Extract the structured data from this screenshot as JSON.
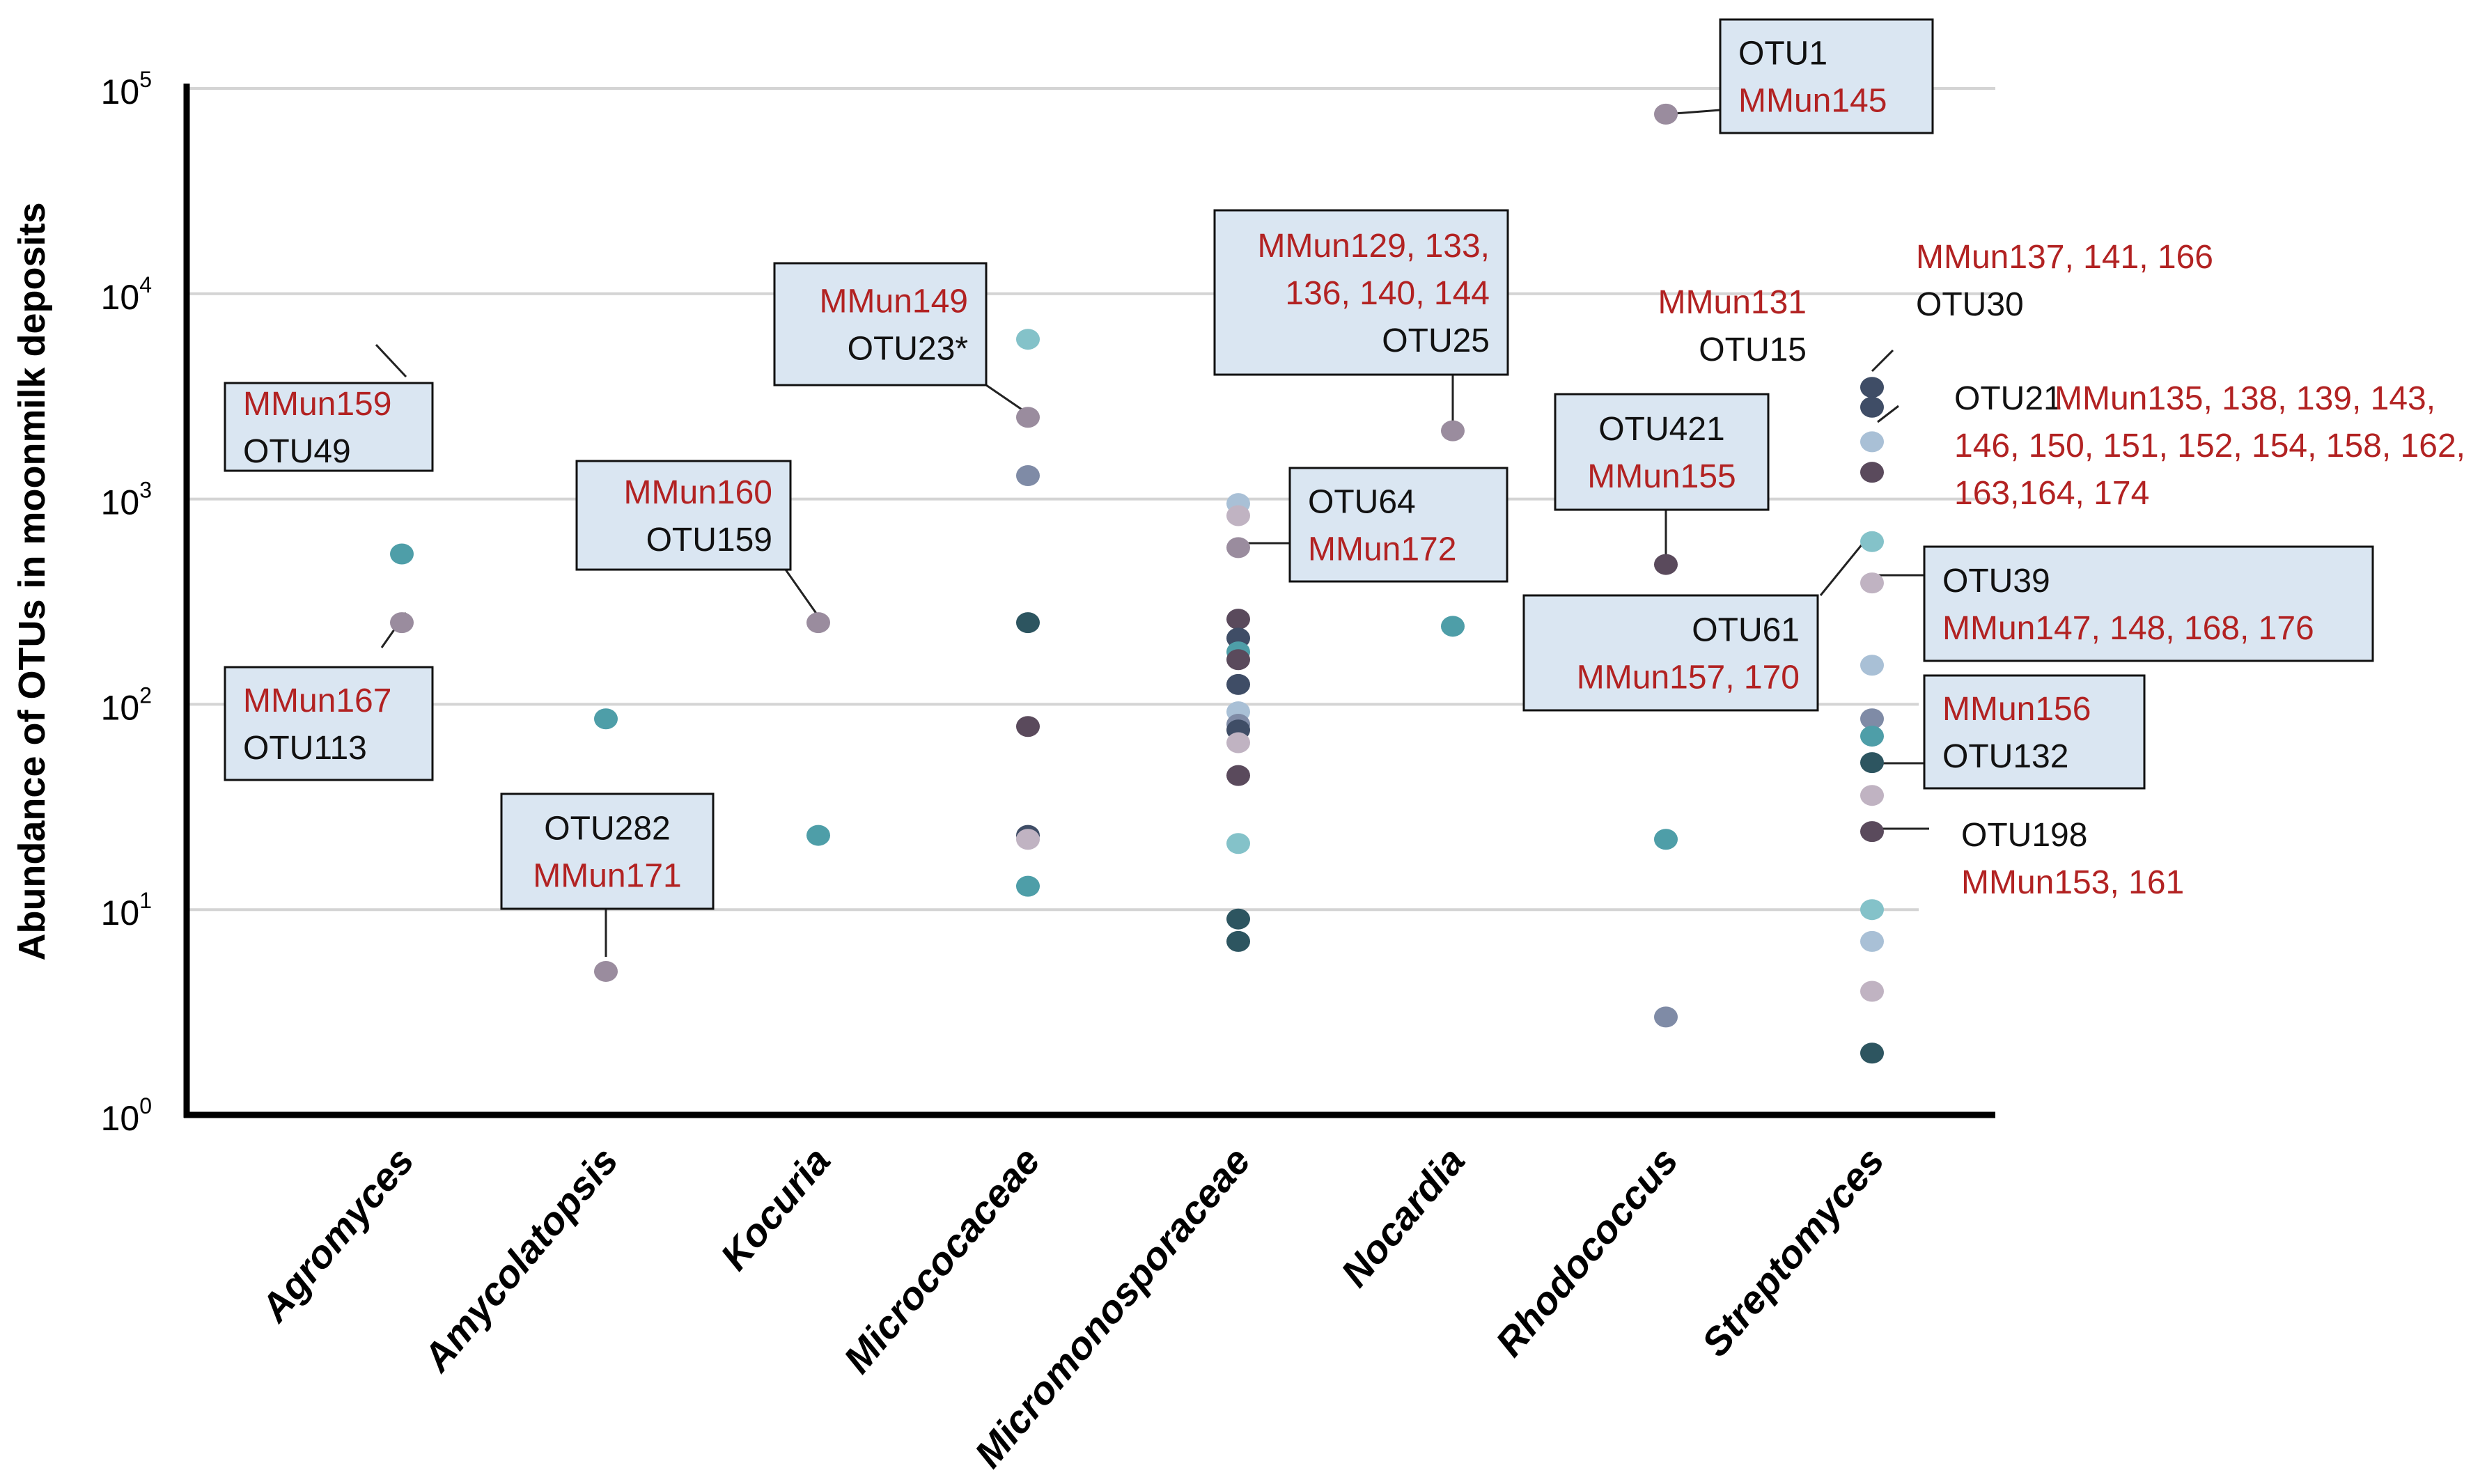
{
  "chart_data": {
    "type": "scatter",
    "title": "",
    "xlabel": "",
    "ylabel": "Abundance of OTUs in moonmilk deposits",
    "yscale": "log",
    "ylim": [
      1,
      100000
    ],
    "yticks": [
      {
        "base": "10",
        "exp": "0",
        "value": 1
      },
      {
        "base": "10",
        "exp": "1",
        "value": 10
      },
      {
        "base": "10",
        "exp": "2",
        "value": 100
      },
      {
        "base": "10",
        "exp": "3",
        "value": 1000
      },
      {
        "base": "10",
        "exp": "4",
        "value": 10000
      },
      {
        "base": "10",
        "exp": "5",
        "value": 100000
      }
    ],
    "grid": true,
    "categories": [
      "Agromyces",
      "Amycolatopsis",
      "Kocuria",
      "Micrococaceae",
      "Micromonosporaceae",
      "Nocardia",
      "Rhodococcus",
      "Streptomyces"
    ],
    "colors": {
      "teal": "#4e9ea8",
      "mauve": "#9a8c9e",
      "slate": "#7f8ba6",
      "plum": "#5a4a5c",
      "navy": "#3f4d66",
      "darkteal": "#2d5560",
      "lightteal": "#84c2c9",
      "lightblue": "#a9c0d6",
      "lightmauve": "#c0b3c2",
      "red": "#b22222",
      "black": "#111111",
      "box_fill": "#dae6f2"
    },
    "points": [
      {
        "category": "Agromyces",
        "y": 540,
        "color": "teal"
      },
      {
        "category": "Agromyces",
        "y": 250,
        "color": "mauve"
      },
      {
        "category": "Amycolatopsis",
        "y": 85,
        "color": "teal"
      },
      {
        "category": "Amycolatopsis",
        "y": 5,
        "color": "mauve"
      },
      {
        "category": "Kocuria",
        "y": 250,
        "color": "mauve"
      },
      {
        "category": "Kocuria",
        "y": 23,
        "color": "teal"
      },
      {
        "category": "Micrococaceae",
        "y": 6000,
        "color": "lightteal"
      },
      {
        "category": "Micrococaceae",
        "y": 2500,
        "color": "mauve"
      },
      {
        "category": "Micrococaceae",
        "y": 1300,
        "color": "slate"
      },
      {
        "category": "Micrococaceae",
        "y": 250,
        "color": "darkteal"
      },
      {
        "category": "Micrococaceae",
        "y": 78,
        "color": "plum"
      },
      {
        "category": "Micrococaceae",
        "y": 23,
        "color": "navy"
      },
      {
        "category": "Micrococaceae",
        "y": 22,
        "color": "lightmauve"
      },
      {
        "category": "Micrococaceae",
        "y": 13,
        "color": "teal"
      },
      {
        "category": "Micromonosporaceae",
        "y": 950,
        "color": "lightblue"
      },
      {
        "category": "Micromonosporaceae",
        "y": 830,
        "color": "lightmauve"
      },
      {
        "category": "Micromonosporaceae",
        "y": 580,
        "color": "mauve"
      },
      {
        "category": "Micromonosporaceae",
        "y": 260,
        "color": "plum"
      },
      {
        "category": "Micromonosporaceae",
        "y": 210,
        "color": "navy"
      },
      {
        "category": "Micromonosporaceae",
        "y": 180,
        "color": "teal"
      },
      {
        "category": "Micromonosporaceae",
        "y": 165,
        "color": "plum"
      },
      {
        "category": "Micromonosporaceae",
        "y": 125,
        "color": "navy"
      },
      {
        "category": "Micromonosporaceae",
        "y": 92,
        "color": "lightblue"
      },
      {
        "category": "Micromonosporaceae",
        "y": 80,
        "color": "slate"
      },
      {
        "category": "Micromonosporaceae",
        "y": 75,
        "color": "navy"
      },
      {
        "category": "Micromonosporaceae",
        "y": 65,
        "color": "lightmauve"
      },
      {
        "category": "Micromonosporaceae",
        "y": 45,
        "color": "plum"
      },
      {
        "category": "Micromonosporaceae",
        "y": 21,
        "color": "lightteal"
      },
      {
        "category": "Micromonosporaceae",
        "y": 9,
        "color": "darkteal"
      },
      {
        "category": "Micromonosporaceae",
        "y": 7,
        "color": "darkteal"
      },
      {
        "category": "Nocardia",
        "y": 2150,
        "color": "mauve"
      },
      {
        "category": "Nocardia",
        "y": 240,
        "color": "teal"
      },
      {
        "category": "Rhodococcus",
        "y": 75000,
        "color": "mauve"
      },
      {
        "category": "Rhodococcus",
        "y": 480,
        "color": "plum"
      },
      {
        "category": "Rhodococcus",
        "y": 22,
        "color": "teal"
      },
      {
        "category": "Rhodococcus",
        "y": 3,
        "color": "slate"
      },
      {
        "category": "Streptomyces",
        "y": 3500,
        "color": "navy"
      },
      {
        "category": "Streptomyces",
        "y": 2800,
        "color": "navy"
      },
      {
        "category": "Streptomyces",
        "y": 1900,
        "color": "lightblue"
      },
      {
        "category": "Streptomyces",
        "y": 1350,
        "color": "plum"
      },
      {
        "category": "Streptomyces",
        "y": 620,
        "color": "lightteal"
      },
      {
        "category": "Streptomyces",
        "y": 390,
        "color": "lightmauve"
      },
      {
        "category": "Streptomyces",
        "y": 155,
        "color": "lightblue"
      },
      {
        "category": "Streptomyces",
        "y": 85,
        "color": "slate"
      },
      {
        "category": "Streptomyces",
        "y": 70,
        "color": "teal"
      },
      {
        "category": "Streptomyces",
        "y": 52,
        "color": "darkteal"
      },
      {
        "category": "Streptomyces",
        "y": 36,
        "color": "lightmauve"
      },
      {
        "category": "Streptomyces",
        "y": 24,
        "color": "plum"
      },
      {
        "category": "Streptomyces",
        "y": 10,
        "color": "lightteal"
      },
      {
        "category": "Streptomyces",
        "y": 7,
        "color": "lightblue"
      },
      {
        "category": "Streptomyces",
        "y": 4,
        "color": "lightmauve"
      },
      {
        "category": "Streptomyces",
        "y": 2,
        "color": "darkteal"
      }
    ],
    "annotations": [
      {
        "category": "Agromyces",
        "point_y": 540,
        "boxed": true,
        "lines": [
          [
            "MMun159",
            "red"
          ],
          [
            "OTU49",
            "black"
          ]
        ]
      },
      {
        "category": "Agromyces",
        "point_y": 250,
        "boxed": true,
        "lines": [
          [
            "MMun167",
            "red"
          ],
          [
            "OTU113",
            "black"
          ]
        ]
      },
      {
        "category": "Amycolatopsis",
        "point_y": 5,
        "boxed": true,
        "lines": [
          [
            "OTU282",
            "black"
          ],
          [
            "MMun171",
            "red"
          ]
        ]
      },
      {
        "category": "Kocuria",
        "point_y": 250,
        "boxed": true,
        "lines": [
          [
            "MMun160",
            "red"
          ],
          [
            "OTU159",
            "black"
          ]
        ]
      },
      {
        "category": "Micrococaceae",
        "point_y": 2500,
        "boxed": true,
        "lines": [
          [
            "MMun149",
            "red"
          ],
          [
            "OTU23*",
            "black"
          ]
        ]
      },
      {
        "category": "Nocardia",
        "point_y": 2150,
        "boxed": true,
        "lines": [
          [
            "MMun129, 133,",
            "red"
          ],
          [
            "136, 140, 144",
            "red"
          ],
          [
            "OTU25",
            "black"
          ]
        ]
      },
      {
        "category": "Micromonosporaceae",
        "point_y": 580,
        "boxed": true,
        "lines": [
          [
            "OTU64",
            "black"
          ],
          [
            "MMun172",
            "red"
          ]
        ]
      },
      {
        "category": "Rhodococcus",
        "point_y": 75000,
        "boxed": true,
        "lines": [
          [
            "OTU1",
            "black"
          ],
          [
            "MMun145",
            "red"
          ]
        ]
      },
      {
        "category": "Rhodococcus",
        "point_y": 480,
        "boxed": true,
        "lines": [
          [
            "OTU421",
            "black"
          ],
          [
            "MMun155",
            "red"
          ]
        ]
      },
      {
        "category": "Streptomyces",
        "point_y": 620,
        "boxed": true,
        "lines": [
          [
            "OTU61",
            "black"
          ],
          [
            "MMun157, 170",
            "red"
          ]
        ]
      },
      {
        "category": "Streptomyces",
        "point_y": 390,
        "boxed": true,
        "lines": [
          [
            "OTU39",
            "black"
          ],
          [
            "MMun147, 148, 168, 176",
            "red"
          ]
        ]
      },
      {
        "category": "Streptomyces",
        "point_y": 52,
        "boxed": true,
        "lines": [
          [
            "MMun156",
            "red"
          ],
          [
            "OTU132",
            "black"
          ]
        ]
      },
      {
        "category": "Streptomyces",
        "point_y": 24,
        "boxed": false,
        "lines": [
          [
            "OTU198",
            "black"
          ],
          [
            "MMun153, 161",
            "red"
          ]
        ]
      },
      {
        "category": "Streptomyces",
        "point_y": 3500,
        "boxed": false,
        "lines": [
          [
            "MMun137, 141, 166",
            "red"
          ],
          [
            "OTU30",
            "black"
          ]
        ]
      },
      {
        "category": "Streptomyces",
        "point_y": 2800,
        "boxed": false,
        "lines": [
          [
            "MMun131",
            "red"
          ],
          [
            "OTU15",
            "black"
          ]
        ]
      },
      {
        "category": "Streptomyces",
        "point_y": 1900,
        "boxed": false,
        "lines": [
          [
            "OTU21",
            "black"
          ],
          [
            "MMun135, 138, 139, 143,",
            "red"
          ],
          [
            "146, 150, 151, 152, 154, 158, 162,",
            "red"
          ],
          [
            "163,164, 174",
            "red"
          ]
        ]
      }
    ]
  }
}
